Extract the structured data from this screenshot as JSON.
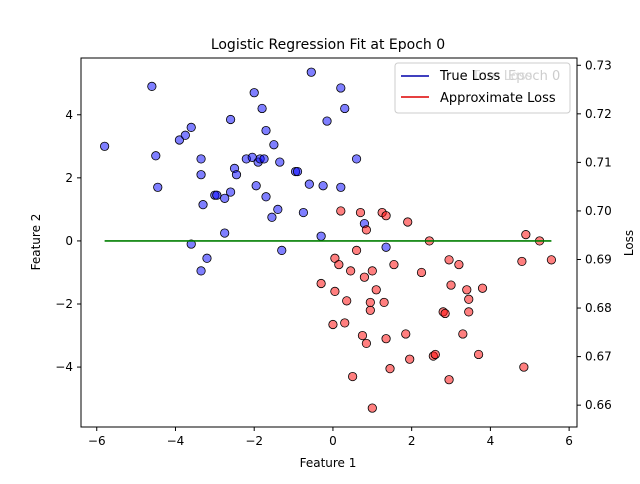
{
  "chart_data": {
    "type": "scatter",
    "title": "Logistic Regression Fit at Epoch 0",
    "xlabel": "Feature 1",
    "ylabel": "Feature 2",
    "y2label": "Loss",
    "xlim": [
      -6.4,
      6.2
    ],
    "ylim": [
      -5.9,
      5.8
    ],
    "y2lim": [
      0.6555,
      0.7315
    ],
    "xticks": [
      -6,
      -4,
      -2,
      0,
      2,
      4,
      6
    ],
    "yticks": [
      -4,
      -2,
      0,
      2,
      4
    ],
    "y2ticks": [
      0.66,
      0.67,
      0.68,
      0.69,
      0.7,
      0.71,
      0.72,
      0.73
    ],
    "series": [
      {
        "name": "",
        "color": "#0000ff",
        "points": [
          [
            -5.8,
            3.0
          ],
          [
            -4.6,
            4.9
          ],
          [
            -4.5,
            2.7
          ],
          [
            -4.45,
            1.7
          ],
          [
            -3.9,
            3.2
          ],
          [
            -3.75,
            3.35
          ],
          [
            -3.6,
            3.6
          ],
          [
            -3.6,
            -0.1
          ],
          [
            -3.35,
            2.6
          ],
          [
            -3.35,
            2.1
          ],
          [
            -3.3,
            1.15
          ],
          [
            -3.35,
            -0.95
          ],
          [
            -3.2,
            -0.55
          ],
          [
            -3.0,
            1.45
          ],
          [
            -2.95,
            1.45
          ],
          [
            -2.75,
            1.35
          ],
          [
            -2.75,
            0.25
          ],
          [
            -2.6,
            3.85
          ],
          [
            -2.6,
            1.55
          ],
          [
            -2.5,
            2.3
          ],
          [
            -2.45,
            2.1
          ],
          [
            -2.2,
            2.6
          ],
          [
            -2.05,
            2.65
          ],
          [
            -2.0,
            4.7
          ],
          [
            -1.95,
            1.75
          ],
          [
            -1.9,
            2.5
          ],
          [
            -1.85,
            2.6
          ],
          [
            -1.8,
            4.2
          ],
          [
            -1.75,
            2.6
          ],
          [
            -1.7,
            1.4
          ],
          [
            -1.7,
            3.5
          ],
          [
            -1.55,
            0.75
          ],
          [
            -1.5,
            3.05
          ],
          [
            -1.4,
            1.0
          ],
          [
            -1.35,
            2.5
          ],
          [
            -1.3,
            -0.3
          ],
          [
            -0.95,
            2.2
          ],
          [
            -0.9,
            2.2
          ],
          [
            -0.75,
            0.9
          ],
          [
            -0.6,
            1.8
          ],
          [
            -0.55,
            5.35
          ],
          [
            -0.3,
            0.15
          ],
          [
            -0.25,
            1.75
          ],
          [
            -0.15,
            3.8
          ],
          [
            0.2,
            4.85
          ],
          [
            0.2,
            1.7
          ],
          [
            0.3,
            4.2
          ],
          [
            0.6,
            2.6
          ],
          [
            0.8,
            0.55
          ],
          [
            1.35,
            -0.2
          ]
        ]
      },
      {
        "name": "",
        "color": "#ff0000",
        "points": [
          [
            -0.3,
            -1.35
          ],
          [
            0.0,
            -2.65
          ],
          [
            0.05,
            -1.6
          ],
          [
            0.05,
            -0.55
          ],
          [
            0.15,
            -0.75
          ],
          [
            0.2,
            0.95
          ],
          [
            0.3,
            -2.6
          ],
          [
            0.35,
            -1.9
          ],
          [
            0.45,
            -0.95
          ],
          [
            0.5,
            -4.3
          ],
          [
            0.6,
            -0.3
          ],
          [
            0.7,
            0.9
          ],
          [
            0.75,
            -3.0
          ],
          [
            0.8,
            -1.15
          ],
          [
            0.85,
            -3.25
          ],
          [
            0.85,
            0.35
          ],
          [
            0.95,
            -2.2
          ],
          [
            0.95,
            -1.95
          ],
          [
            1.0,
            -0.95
          ],
          [
            1.0,
            -5.3
          ],
          [
            1.1,
            -1.55
          ],
          [
            1.25,
            0.9
          ],
          [
            1.3,
            -1.95
          ],
          [
            1.35,
            0.8
          ],
          [
            1.35,
            -3.1
          ],
          [
            1.45,
            -4.05
          ],
          [
            1.55,
            -0.75
          ],
          [
            1.85,
            -2.95
          ],
          [
            1.9,
            0.6
          ],
          [
            1.95,
            -3.75
          ],
          [
            2.25,
            -1.0
          ],
          [
            2.45,
            0.0
          ],
          [
            2.55,
            -3.65
          ],
          [
            2.6,
            -3.6
          ],
          [
            2.8,
            -2.25
          ],
          [
            2.85,
            -2.3
          ],
          [
            2.95,
            -0.6
          ],
          [
            2.95,
            -4.4
          ],
          [
            3.0,
            -1.4
          ],
          [
            3.2,
            -0.75
          ],
          [
            3.3,
            -2.95
          ],
          [
            3.4,
            -1.55
          ],
          [
            3.45,
            -1.85
          ],
          [
            3.45,
            -2.25
          ],
          [
            3.7,
            -3.6
          ],
          [
            3.8,
            -1.5
          ],
          [
            4.8,
            -0.65
          ],
          [
            4.85,
            -4.0
          ],
          [
            4.9,
            0.2
          ],
          [
            5.25,
            0.0
          ],
          [
            5.55,
            -0.6
          ]
        ]
      }
    ],
    "lines": [
      {
        "name": "decision-boundary",
        "color": "#007f00",
        "x": [
          -5.8,
          5.55
        ],
        "y": [
          0.0,
          0.0
        ]
      }
    ],
    "legend": {
      "placement": "top-right",
      "entries": [
        {
          "label": "True Loss",
          "color": "#0000aa"
        },
        {
          "label": "Approximate Loss",
          "color": "#dd0000"
        }
      ],
      "ghost_text": "Epoch 0",
      "overlap_text": "True Loss"
    }
  }
}
